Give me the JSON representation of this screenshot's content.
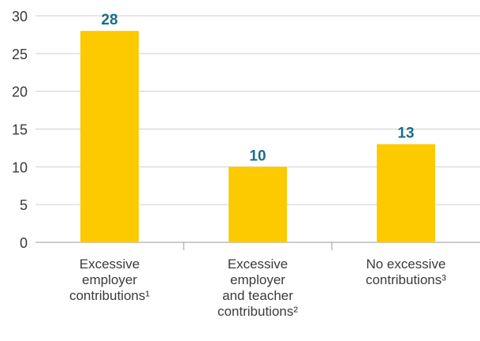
{
  "chart_data": {
    "type": "bar",
    "categories": [
      "Excessive\nemployer\ncontributions¹",
      "Excessive\nemployer\nand teacher\ncontributions²",
      "No excessive\ncontributions³"
    ],
    "values": [
      28,
      10,
      13
    ],
    "color": "#fdca00",
    "value_color": "#1b6c8c",
    "ylim": [
      0,
      30
    ],
    "yticks": [
      0,
      5,
      10,
      15,
      20,
      25,
      30
    ],
    "grid": true
  }
}
